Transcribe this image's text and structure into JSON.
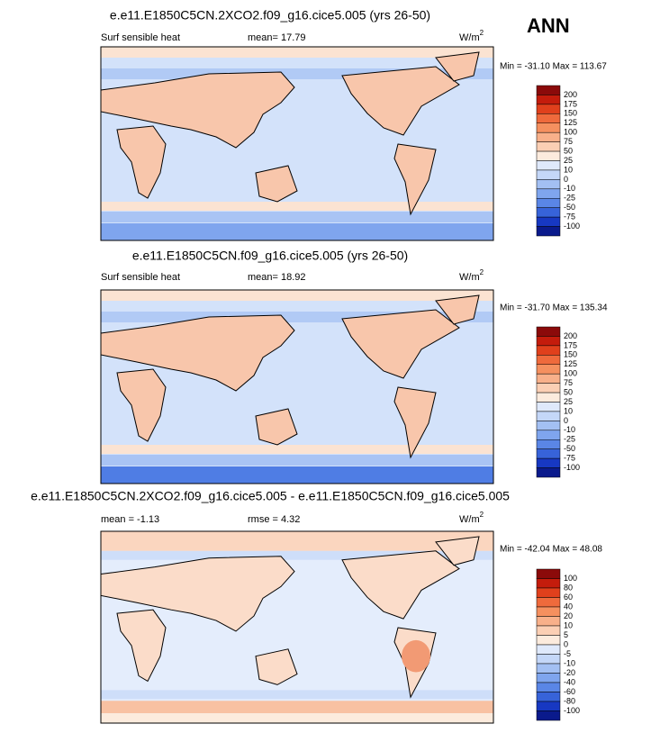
{
  "season": "ANN",
  "panels": [
    {
      "title": "e.e11.E1850C5CN.2XCO2.f09_g16.cice5.005 (yrs 26-50)",
      "variable": "Surf sensible heat",
      "stat": "mean=  17.79",
      "units": "W/m",
      "units_sup": "2",
      "range": "Min = -31.10 Max = 113.67",
      "colorbar_labels": [
        "200",
        "175",
        "150",
        "125",
        "100",
        "75",
        "50",
        "25",
        "10",
        "0",
        "-10",
        "-25",
        "-50",
        "-75",
        "-100"
      ],
      "colors": [
        "#8b0a0a",
        "#c41c0c",
        "#e0401c",
        "#ef6a3c",
        "#f5905f",
        "#f8b08a",
        "#fbcfb4",
        "#fcebdd",
        "#dfe9fb",
        "#c4d7f8",
        "#a3c0f3",
        "#7fa5ee",
        "#5a86e6",
        "#3763d9",
        "#1738c2",
        "#0a1a8c"
      ],
      "style": "base"
    },
    {
      "title": "e.e11.E1850C5CN.f09_g16.cice5.005 (yrs 26-50)",
      "variable": "Surf sensible heat",
      "stat": "mean=  18.92",
      "units": "W/m",
      "units_sup": "2",
      "range": "Min = -31.70 Max = 135.34",
      "colorbar_labels": [
        "200",
        "175",
        "150",
        "125",
        "100",
        "75",
        "50",
        "25",
        "10",
        "0",
        "-10",
        "-25",
        "-50",
        "-75",
        "-100"
      ],
      "colors": [
        "#8b0a0a",
        "#c41c0c",
        "#e0401c",
        "#ef6a3c",
        "#f5905f",
        "#f8b08a",
        "#fbcfb4",
        "#fcebdd",
        "#dfe9fb",
        "#c4d7f8",
        "#a3c0f3",
        "#7fa5ee",
        "#5a86e6",
        "#3763d9",
        "#1738c2",
        "#0a1a8c"
      ],
      "style": "base"
    },
    {
      "title": "e.e11.E1850C5CN.2XCO2.f09_g16.cice5.005 - e.e11.E1850C5CN.f09_g16.cice5.005",
      "variable": "mean =  -1.13",
      "stat": "rmse =  4.32",
      "units": "W/m",
      "units_sup": "2",
      "range": "Min = -42.04 Max = 48.08",
      "colorbar_labels": [
        "100",
        "80",
        "60",
        "40",
        "20",
        "10",
        "5",
        "0",
        "-5",
        "-10",
        "-20",
        "-40",
        "-60",
        "-80",
        "-100"
      ],
      "colors": [
        "#8b0a0a",
        "#c41c0c",
        "#e0401c",
        "#ef6a3c",
        "#f5905f",
        "#f8b08a",
        "#fbcfb4",
        "#fcebdd",
        "#dfe9fb",
        "#c4d7f8",
        "#a3c0f3",
        "#7fa5ee",
        "#5a86e6",
        "#3763d9",
        "#1738c2",
        "#0a1a8c"
      ],
      "style": "diff"
    }
  ]
}
